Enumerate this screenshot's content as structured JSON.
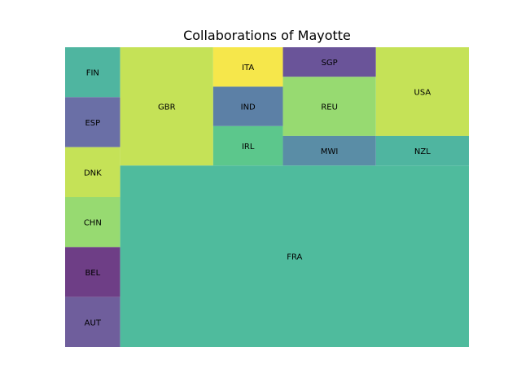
{
  "chart_data": {
    "type": "treemap",
    "title": "Collaborations of Mayotte",
    "columns": [
      {
        "items": [
          {
            "label": "FIN",
            "value": 1,
            "color": "#4fb5a0"
          },
          {
            "label": "ESP",
            "value": 1,
            "color": "#6a6fa6"
          },
          {
            "label": "DNK",
            "value": 1,
            "color": "#c5e257"
          },
          {
            "label": "CHN",
            "value": 1,
            "color": "#97da71"
          },
          {
            "label": "BEL",
            "value": 1,
            "color": "#6e3e86"
          },
          {
            "label": "AUT",
            "value": 1,
            "color": "#6f5e9c"
          }
        ]
      },
      {
        "top": [
          {
            "label": "GBR",
            "value": 4,
            "color": "#c5e257"
          },
          {
            "items": [
              {
                "label": "ITA",
                "value": 1,
                "color": "#f6e74b"
              },
              {
                "label": "IND",
                "value": 1,
                "color": "#5c80a6"
              },
              {
                "label": "IRL",
                "value": 1,
                "color": "#5cc78c"
              }
            ]
          },
          {
            "items": [
              {
                "label": "SGP",
                "value": 1,
                "color": "#6a5499"
              },
              {
                "label": "REU",
                "value": 2,
                "color": "#97da71"
              },
              {
                "label": "MWI",
                "value": 1,
                "color": "#5a8da6"
              }
            ]
          },
          {
            "items": [
              {
                "label": "USA",
                "value": 3,
                "color": "#c5e257"
              },
              {
                "label": "NZL",
                "value": 1,
                "color": "#4fb5a0"
              }
            ]
          }
        ],
        "bottom": {
          "label": "FRA",
          "value": 23,
          "color": "#4fbb9d"
        }
      }
    ]
  }
}
